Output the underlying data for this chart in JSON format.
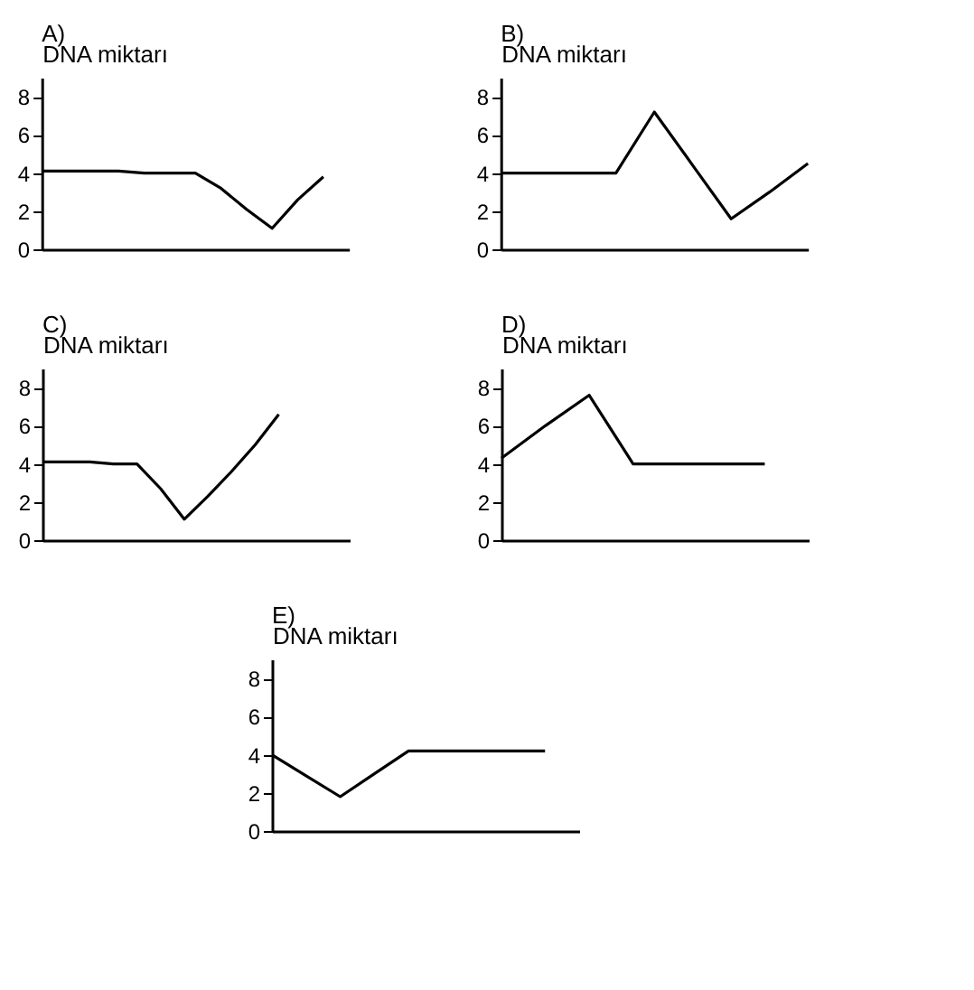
{
  "chart_data": [
    {
      "type": "line",
      "title": "A)",
      "ylabel": "DNA miktarı",
      "categories": [
        null,
        null,
        null,
        null,
        null,
        null,
        null,
        null,
        null,
        null,
        null,
        null,
        null
      ],
      "series": [
        {
          "color": "#000000",
          "values": [
            4.1,
            4.1,
            4.1,
            4.1,
            4.0,
            4.0,
            4.0,
            3.2,
            2.1,
            1.1,
            2.6,
            3.8,
            null
          ]
        }
      ],
      "ylim": [
        0,
        9
      ],
      "yticks": [
        0,
        2,
        4,
        6,
        8
      ],
      "tick_labels": "y"
    },
    {
      "type": "line",
      "title": "B)",
      "ylabel": "DNA miktarı",
      "categories": [
        null,
        null,
        null,
        null,
        null,
        null,
        null,
        null,
        null
      ],
      "series": [
        {
          "color": "#000000",
          "values": [
            4.0,
            4.0,
            4.0,
            4.0,
            7.2,
            4.4,
            1.6,
            3.0,
            4.5
          ]
        }
      ],
      "ylim": [
        0,
        9
      ],
      "yticks": [
        0,
        2,
        4,
        6,
        8
      ],
      "tick_labels": "y"
    },
    {
      "type": "line",
      "title": "C)",
      "ylabel": "DNA miktarı",
      "categories": [
        null,
        null,
        null,
        null,
        null,
        null,
        null,
        null,
        null,
        null,
        null,
        null,
        null,
        null
      ],
      "series": [
        {
          "color": "#000000",
          "values": [
            4.1,
            4.1,
            4.1,
            4.0,
            4.0,
            2.7,
            1.1,
            2.3,
            3.6,
            5.0,
            6.6,
            null,
            null,
            null
          ]
        }
      ],
      "ylim": [
        0,
        9
      ],
      "yticks": [
        0,
        2,
        4,
        6,
        8
      ],
      "tick_labels": "y"
    },
    {
      "type": "line",
      "title": "D)",
      "ylabel": "DNA miktarı",
      "categories": [
        null,
        null,
        null,
        null,
        null,
        null,
        null,
        null
      ],
      "series": [
        {
          "color": "#000000",
          "values": [
            4.3,
            6.0,
            7.6,
            4.0,
            4.0,
            4.0,
            4.0,
            null
          ]
        }
      ],
      "ylim": [
        0,
        9
      ],
      "yticks": [
        0,
        2,
        4,
        6,
        8
      ],
      "tick_labels": "y"
    },
    {
      "type": "line",
      "title": "E)",
      "ylabel": "DNA miktarı",
      "categories": [
        null,
        null,
        null,
        null,
        null,
        null,
        null,
        null,
        null,
        null
      ],
      "series": [
        {
          "color": "#000000",
          "values": [
            4.0,
            2.9,
            1.8,
            3.0,
            4.2,
            4.2,
            4.2,
            4.2,
            4.2,
            null
          ]
        }
      ],
      "ylim": [
        0,
        9
      ],
      "yticks": [
        0,
        2,
        4,
        6,
        8
      ],
      "tick_labels": "y"
    }
  ]
}
